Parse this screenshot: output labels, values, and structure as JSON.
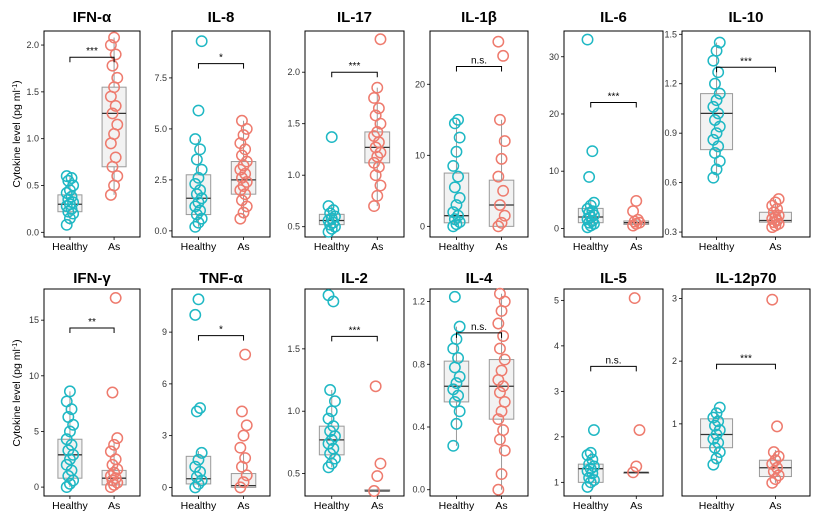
{
  "figure": {
    "ylabel_main": "Cytokine level (pg ml",
    "ylabel_sup": "-1",
    "ylabel_close": ")",
    "colors": {
      "healthy": "#1fb8c4",
      "as": "#ee7b6e",
      "box_fill": "#f0f0f0",
      "box_line": "#9a9a9a",
      "frame": "#000000"
    }
  },
  "chart_data": [
    {
      "type": "box",
      "title": "IFN-α",
      "categories": [
        "Healthy",
        "As"
      ],
      "ylim": [
        -0.05,
        2.15
      ],
      "ticks": [
        0.0,
        0.5,
        1.0,
        1.5,
        2.0
      ],
      "tick_labels": [
        "0.0",
        "0.5",
        "1.0",
        "1.5",
        "2.0"
      ],
      "significance": "***",
      "sig_y": 1.87,
      "series": [
        {
          "name": "Healthy",
          "box": {
            "q1": 0.22,
            "median": 0.3,
            "q3": 0.4,
            "wlow": 0.08,
            "whigh": 0.6
          },
          "points": [
            0.08,
            0.15,
            0.2,
            0.22,
            0.25,
            0.28,
            0.3,
            0.32,
            0.35,
            0.38,
            0.42,
            0.45,
            0.5,
            0.55,
            0.58,
            0.6
          ]
        },
        {
          "name": "As",
          "box": {
            "q1": 0.7,
            "median": 1.27,
            "q3": 1.55,
            "wlow": 0.4,
            "whigh": 2.08
          },
          "points": [
            0.4,
            0.5,
            0.6,
            0.7,
            0.8,
            0.95,
            1.05,
            1.15,
            1.27,
            1.35,
            1.45,
            1.55,
            1.65,
            1.78,
            1.9,
            2.0,
            2.08
          ]
        }
      ]
    },
    {
      "type": "box",
      "title": "IL-8",
      "categories": [
        "Healthy",
        "As"
      ],
      "ylim": [
        -0.3,
        9.8
      ],
      "ticks": [
        0.0,
        2.5,
        5.0,
        7.5
      ],
      "tick_labels": [
        "0.0",
        "2.5",
        "5.0",
        "7.5"
      ],
      "significance": "*",
      "sig_y": 8.2,
      "series": [
        {
          "name": "Healthy",
          "box": {
            "q1": 0.8,
            "median": 1.6,
            "q3": 2.75,
            "wlow": 0.2,
            "whigh": 4.5
          },
          "points": [
            0.2,
            0.4,
            0.6,
            0.8,
            1.0,
            1.2,
            1.4,
            1.6,
            1.8,
            2.0,
            2.3,
            2.6,
            3.0,
            3.5,
            4.0,
            4.5,
            5.9,
            9.3
          ]
        },
        {
          "name": "As",
          "box": {
            "q1": 1.8,
            "median": 2.5,
            "q3": 3.4,
            "wlow": 0.6,
            "whigh": 5.4
          },
          "points": [
            0.6,
            0.9,
            1.2,
            1.5,
            1.8,
            2.0,
            2.2,
            2.4,
            2.6,
            2.8,
            3.0,
            3.2,
            3.4,
            3.7,
            4.0,
            4.3,
            4.7,
            5.0,
            5.4
          ]
        }
      ]
    },
    {
      "type": "box",
      "title": "IL-17",
      "categories": [
        "Healthy",
        "As"
      ],
      "ylim": [
        0.4,
        2.4
      ],
      "ticks": [
        0.5,
        1.0,
        1.5,
        2.0
      ],
      "tick_labels": [
        "0.5",
        "1.0",
        "1.5",
        "2.0"
      ],
      "significance": "***",
      "sig_y": 2.0,
      "series": [
        {
          "name": "Healthy",
          "box": {
            "q1": 0.52,
            "median": 0.56,
            "q3": 0.62,
            "wlow": 0.45,
            "whigh": 0.72
          },
          "points": [
            0.45,
            0.48,
            0.5,
            0.52,
            0.54,
            0.56,
            0.58,
            0.6,
            0.63,
            0.66,
            0.7,
            1.37
          ]
        },
        {
          "name": "As",
          "box": {
            "q1": 1.12,
            "median": 1.27,
            "q3": 1.42,
            "wlow": 0.7,
            "whigh": 1.85
          },
          "points": [
            0.7,
            0.8,
            0.9,
            1.0,
            1.08,
            1.12,
            1.18,
            1.22,
            1.27,
            1.32,
            1.38,
            1.42,
            1.5,
            1.58,
            1.65,
            1.75,
            1.85,
            2.32
          ]
        }
      ]
    },
    {
      "type": "box",
      "title": "IL-1β",
      "categories": [
        "Healthy",
        "As"
      ],
      "ylim": [
        -1.5,
        27.5
      ],
      "ticks": [
        0,
        10,
        20
      ],
      "tick_labels": [
        "0",
        "10",
        "20"
      ],
      "significance": "n.s.",
      "sig_y": 22.5,
      "series": [
        {
          "name": "Healthy",
          "box": {
            "q1": 0.5,
            "median": 1.5,
            "q3": 7.5,
            "wlow": 0,
            "whigh": 15
          },
          "points": [
            0,
            0.3,
            0.6,
            1.0,
            1.5,
            2.0,
            3.0,
            4.0,
            5.5,
            7.0,
            8.5,
            10.5,
            12.5,
            14.5,
            15.0
          ]
        },
        {
          "name": "As",
          "box": {
            "q1": 0,
            "median": 3.0,
            "q3": 6.5,
            "wlow": 0,
            "whigh": 15
          },
          "points": [
            0,
            0.5,
            1.5,
            3.0,
            5.0,
            7.0,
            9.5,
            12.0,
            15.0,
            24.0,
            26.0
          ]
        }
      ]
    },
    {
      "type": "box",
      "title": "IL-6",
      "categories": [
        "Healthy",
        "As"
      ],
      "ylim": [
        -1.5,
        34.5
      ],
      "ticks": [
        0,
        10,
        20,
        30
      ],
      "tick_labels": [
        "0",
        "10",
        "20",
        "30"
      ],
      "significance": "***",
      "sig_y": 22,
      "series": [
        {
          "name": "Healthy",
          "box": {
            "q1": 1.0,
            "median": 2.0,
            "q3": 3.5,
            "wlow": 0.2,
            "whigh": 5.0
          },
          "points": [
            0.2,
            0.5,
            0.8,
            1.0,
            1.3,
            1.6,
            2.0,
            2.3,
            2.7,
            3.0,
            3.4,
            4.0,
            4.5,
            9.0,
            13.5,
            33.0
          ]
        },
        {
          "name": "As",
          "box": {
            "q1": 0.7,
            "median": 1.0,
            "q3": 1.3,
            "wlow": 0.5,
            "whigh": 1.6
          },
          "points": [
            0.5,
            0.8,
            1.0,
            1.2,
            1.5,
            3.0,
            4.8
          ]
        }
      ]
    },
    {
      "type": "box",
      "title": "IL-10",
      "categories": [
        "Healthy",
        "As"
      ],
      "ylim": [
        0.27,
        1.52
      ],
      "ticks": [
        0.3,
        0.6,
        0.9,
        1.2,
        1.5
      ],
      "tick_labels": [
        "0.3",
        "0.6",
        "0.9",
        "1.2",
        "1.5"
      ],
      "significance": "***",
      "sig_y": 1.3,
      "series": [
        {
          "name": "Healthy",
          "box": {
            "q1": 0.8,
            "median": 1.02,
            "q3": 1.14,
            "wlow": 0.63,
            "whigh": 1.45
          },
          "points": [
            0.63,
            0.68,
            0.73,
            0.78,
            0.82,
            0.86,
            0.9,
            0.94,
            0.98,
            1.02,
            1.06,
            1.1,
            1.14,
            1.2,
            1.27,
            1.34,
            1.4,
            1.45
          ]
        },
        {
          "name": "As",
          "box": {
            "q1": 0.36,
            "median": 0.37,
            "q3": 0.42,
            "wlow": 0.33,
            "whigh": 0.5
          },
          "points": [
            0.33,
            0.34,
            0.35,
            0.36,
            0.37,
            0.38,
            0.39,
            0.4,
            0.42,
            0.44,
            0.46,
            0.48,
            0.5
          ]
        }
      ]
    },
    {
      "type": "box",
      "title": "IFN-γ",
      "categories": [
        "Healthy",
        "As"
      ],
      "ylim": [
        -0.8,
        17.8
      ],
      "ticks": [
        0,
        5,
        10,
        15
      ],
      "tick_labels": [
        "0",
        "5",
        "10",
        "15"
      ],
      "significance": "**",
      "sig_y": 14.3,
      "series": [
        {
          "name": "Healthy",
          "box": {
            "q1": 0.8,
            "median": 2.9,
            "q3": 4.3,
            "wlow": 0,
            "whigh": 8.6
          },
          "points": [
            0,
            0.3,
            0.6,
            1.0,
            1.5,
            2.0,
            2.5,
            2.9,
            3.3,
            3.8,
            4.3,
            5.0,
            5.6,
            6.3,
            7.0,
            7.7,
            8.6
          ]
        },
        {
          "name": "As",
          "box": {
            "q1": 0.2,
            "median": 0.8,
            "q3": 1.5,
            "wlow": 0,
            "whigh": 4.0
          },
          "points": [
            0,
            0.2,
            0.4,
            0.6,
            0.8,
            1.0,
            1.3,
            1.6,
            2.0,
            2.5,
            3.2,
            3.8,
            4.4,
            8.5,
            17.0
          ]
        }
      ]
    },
    {
      "type": "box",
      "title": "TNF-α",
      "categories": [
        "Healthy",
        "As"
      ],
      "ylim": [
        -0.5,
        11.5
      ],
      "ticks": [
        0,
        3,
        6,
        9
      ],
      "tick_labels": [
        "0",
        "3",
        "6",
        "9"
      ],
      "significance": "*",
      "sig_y": 8.8,
      "series": [
        {
          "name": "Healthy",
          "box": {
            "q1": 0.2,
            "median": 0.5,
            "q3": 1.8,
            "wlow": 0,
            "whigh": 2.1
          },
          "points": [
            0,
            0.2,
            0.4,
            0.6,
            0.9,
            1.2,
            1.6,
            2.0,
            4.4,
            4.6,
            10.0,
            10.9
          ]
        },
        {
          "name": "As",
          "box": {
            "q1": 0,
            "median": 0.1,
            "q3": 0.8,
            "wlow": 0,
            "whigh": 2.0
          },
          "points": [
            0,
            0.3,
            0.7,
            1.2,
            1.7,
            2.3,
            3.0,
            3.6,
            4.4,
            7.7
          ]
        }
      ]
    },
    {
      "type": "box",
      "title": "IL-2",
      "categories": [
        "Healthy",
        "As"
      ],
      "ylim": [
        0.32,
        1.98
      ],
      "ticks": [
        0.5,
        1.0,
        1.5
      ],
      "tick_labels": [
        "0.5",
        "1.0",
        "1.5"
      ],
      "significance": "***",
      "sig_y": 1.6,
      "series": [
        {
          "name": "Healthy",
          "box": {
            "q1": 0.65,
            "median": 0.77,
            "q3": 0.88,
            "wlow": 0.55,
            "whigh": 1.17
          },
          "points": [
            0.55,
            0.58,
            0.62,
            0.66,
            0.7,
            0.74,
            0.77,
            0.8,
            0.84,
            0.88,
            0.94,
            1.0,
            1.08,
            1.17,
            1.88,
            1.93
          ]
        },
        {
          "name": "As",
          "box": {
            "q1": 0.36,
            "median": 0.36,
            "q3": 0.37,
            "wlow": 0.35,
            "whigh": 0.38
          },
          "points": [
            0.36,
            0.48,
            0.58,
            1.2
          ]
        }
      ]
    },
    {
      "type": "box",
      "title": "IL-4",
      "categories": [
        "Healthy",
        "As"
      ],
      "ylim": [
        -0.04,
        1.28
      ],
      "ticks": [
        0.0,
        0.4,
        0.8,
        1.2
      ],
      "tick_labels": [
        "0.0",
        "0.4",
        "0.8",
        "1.2"
      ],
      "significance": "n.s.",
      "sig_y": 1.0,
      "series": [
        {
          "name": "Healthy",
          "box": {
            "q1": 0.56,
            "median": 0.66,
            "q3": 0.82,
            "wlow": 0.28,
            "whigh": 1.04
          },
          "points": [
            0.28,
            0.42,
            0.5,
            0.56,
            0.6,
            0.64,
            0.68,
            0.72,
            0.78,
            0.84,
            0.9,
            0.96,
            1.04,
            1.23
          ]
        },
        {
          "name": "As",
          "box": {
            "q1": 0.45,
            "median": 0.66,
            "q3": 0.83,
            "wlow": 0.0,
            "whigh": 1.25
          },
          "points": [
            0.0,
            0.1,
            0.25,
            0.32,
            0.38,
            0.45,
            0.5,
            0.56,
            0.62,
            0.66,
            0.7,
            0.76,
            0.83,
            0.9,
            0.98,
            1.06,
            1.14,
            1.2,
            1.25
          ]
        }
      ]
    },
    {
      "type": "box",
      "title": "IL-5",
      "categories": [
        "Healthy",
        "As"
      ],
      "ylim": [
        0.7,
        5.25
      ],
      "ticks": [
        1,
        2,
        3,
        4,
        5
      ],
      "tick_labels": [
        "1",
        "2",
        "3",
        "4",
        "5"
      ],
      "significance": "n.s.",
      "sig_y": 3.55,
      "series": [
        {
          "name": "Healthy",
          "box": {
            "q1": 1.0,
            "median": 1.3,
            "q3": 1.4,
            "wlow": 0.9,
            "whigh": 1.65
          },
          "points": [
            0.9,
            1.0,
            1.05,
            1.1,
            1.2,
            1.25,
            1.3,
            1.35,
            1.4,
            1.5,
            1.6,
            1.65,
            2.15
          ]
        },
        {
          "name": "As",
          "box": {
            "q1": 1.22,
            "median": 1.22,
            "q3": 1.22,
            "wlow": 1.2,
            "whigh": 1.25
          },
          "points": [
            1.22,
            1.35,
            2.15,
            5.05
          ]
        }
      ]
    },
    {
      "type": "box",
      "title": "IL-12p70",
      "categories": [
        "Healthy",
        "As"
      ],
      "ylim": [
        -0.15,
        3.15
      ],
      "ticks": [
        1,
        2,
        3
      ],
      "tick_labels": [
        "1",
        "2",
        "3"
      ],
      "significance": "***",
      "sig_y": 1.95,
      "series": [
        {
          "name": "Healthy",
          "box": {
            "q1": 0.62,
            "median": 0.83,
            "q3": 1.08,
            "wlow": 0.35,
            "whigh": 1.26
          },
          "points": [
            0.35,
            0.45,
            0.55,
            0.62,
            0.7,
            0.76,
            0.83,
            0.9,
            0.97,
            1.04,
            1.1,
            1.17,
            1.26
          ]
        },
        {
          "name": "As",
          "box": {
            "q1": 0.16,
            "median": 0.3,
            "q3": 0.42,
            "wlow": 0.06,
            "whigh": 0.58
          },
          "points": [
            0.06,
            0.12,
            0.18,
            0.24,
            0.3,
            0.36,
            0.42,
            0.48,
            0.55,
            0.96,
            2.98
          ]
        }
      ]
    }
  ]
}
